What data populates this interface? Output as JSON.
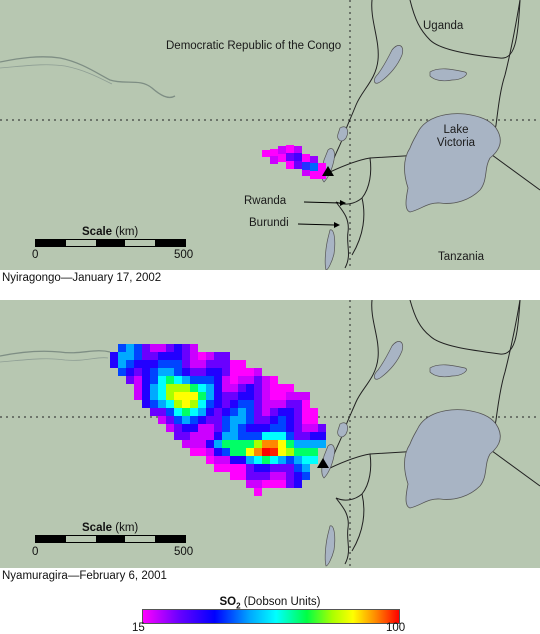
{
  "maps": [
    {
      "caption": "Nyiragongo—January 17, 2002",
      "labels": {
        "drc": "Democratic Republic of the Congo",
        "uganda": "Uganda",
        "lake_victoria": "Lake Victoria",
        "rwanda": "Rwanda",
        "burundi": "Burundi",
        "tanzania": "Tanzania"
      },
      "scale": {
        "title_bold": "Scale",
        "title_unit": " (km)",
        "min": "0",
        "max": "500"
      }
    },
    {
      "caption": "Nyamuragira—February 6, 2001",
      "scale": {
        "title_bold": "Scale",
        "title_unit": " (km)",
        "min": "0",
        "max": "500"
      }
    }
  ],
  "legend": {
    "title_main": "SO",
    "title_sub": "2",
    "title_unit": " (Dobson Units)",
    "min": "15",
    "max": "100",
    "colors": [
      "#ff00ff",
      "#6a00ff",
      "#0000ff",
      "#00aaff",
      "#00ffff",
      "#00ff44",
      "#aaff00",
      "#ffff00",
      "#ff8800",
      "#ff0000"
    ]
  },
  "colors": {
    "land": "#b7c7b1",
    "lake": "#a8b4c4",
    "border": "#222222"
  }
}
